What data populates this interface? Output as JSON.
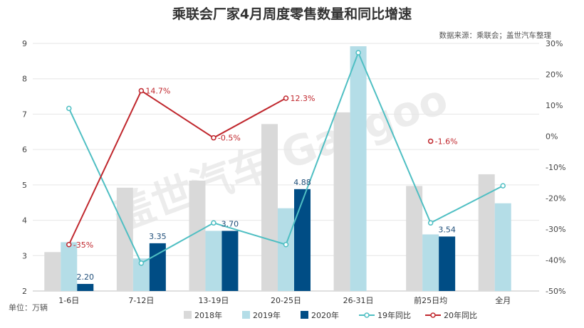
{
  "chart_data": {
    "type": "bar",
    "title": "乘联会厂家4月周度零售数量和同比增速",
    "source": "数据来源：乘联会；盖世汽车整理",
    "unit": "单位：万辆",
    "watermark": "盖世汽车 Gasgoo",
    "categories": [
      "1-6日",
      "7-12日",
      "13-19日",
      "20-25日",
      "26-31日",
      "前25日均",
      "全月"
    ],
    "left_axis": {
      "min": 2,
      "max": 9,
      "ticks": [
        2,
        3,
        4,
        5,
        6,
        7,
        8,
        9
      ]
    },
    "right_axis": {
      "min": -50,
      "max": 30,
      "ticks": [
        "-50%",
        "-40%",
        "-30%",
        "-20%",
        "-10%",
        "0%",
        "10%",
        "20%",
        "30%"
      ]
    },
    "grid": true,
    "legend_position": "bottom",
    "series": [
      {
        "name": "2018年",
        "kind": "bar",
        "axis": "left",
        "color": "#d9d9d9",
        "values": [
          3.1,
          4.92,
          5.12,
          6.72,
          7.05,
          4.97,
          5.3
        ],
        "labels": [
          null,
          null,
          null,
          null,
          null,
          null,
          null
        ]
      },
      {
        "name": "2019年",
        "kind": "bar",
        "axis": "left",
        "color": "#b4dde7",
        "values": [
          3.38,
          2.92,
          3.7,
          4.34,
          8.92,
          3.6,
          4.48
        ],
        "labels": [
          null,
          null,
          null,
          null,
          null,
          null,
          null
        ]
      },
      {
        "name": "2020年",
        "kind": "bar",
        "axis": "left",
        "color": "#004d85",
        "values": [
          2.2,
          3.35,
          3.7,
          4.88,
          null,
          3.54,
          null
        ],
        "labels": [
          "2.20",
          "3.35",
          "3.70",
          "4.88",
          null,
          "3.54",
          null
        ]
      },
      {
        "name": "19年同比",
        "kind": "line",
        "axis": "right",
        "color": "#4fbfc3",
        "values": [
          9,
          -41,
          -28,
          -35,
          27,
          -28,
          -16
        ],
        "labels": [
          null,
          null,
          null,
          null,
          null,
          null,
          null
        ]
      },
      {
        "name": "20年同比",
        "kind": "line",
        "axis": "right",
        "color": "#c0272d",
        "values": [
          -35,
          14.7,
          -0.5,
          12.3,
          null,
          -1.6,
          null
        ],
        "labels": [
          "-35%",
          "14.7%",
          "-0.5%",
          "12.3%",
          null,
          "-1.6%",
          null
        ]
      }
    ]
  }
}
